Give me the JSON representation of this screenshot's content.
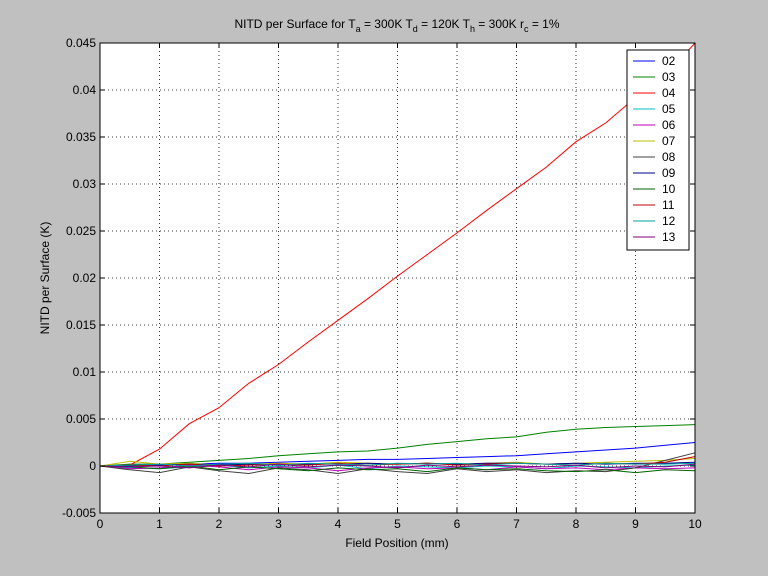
{
  "figure": {
    "background": "#c0c0c0",
    "axes_background": "#ffffff"
  },
  "chart_data": {
    "type": "line",
    "title_parts": [
      {
        "text": "NITD per Surface for T"
      },
      {
        "text": "a",
        "sub": true
      },
      {
        "text": " = 300K    T"
      },
      {
        "text": "d",
        "sub": true
      },
      {
        "text": " = 120K    T"
      },
      {
        "text": "h",
        "sub": true
      },
      {
        "text": " = 300K    r"
      },
      {
        "text": "c",
        "sub": true
      },
      {
        "text": " = 1%"
      }
    ],
    "xlabel": "Field Position (mm)",
    "ylabel": "NITD per Surface (K)",
    "xlim": [
      0,
      10
    ],
    "ylim": [
      -0.005,
      0.045
    ],
    "xticks": [
      0,
      1,
      2,
      3,
      4,
      5,
      6,
      7,
      8,
      9,
      10
    ],
    "xtick_labels": [
      "0",
      "1",
      "2",
      "3",
      "4",
      "5",
      "6",
      "7",
      "8",
      "9",
      "10"
    ],
    "yticks": [
      -0.005,
      0,
      0.005,
      0.01,
      0.015,
      0.02,
      0.025,
      0.03,
      0.035,
      0.04,
      0.045
    ],
    "ytick_labels": [
      "-0.005",
      "0",
      "0.005",
      "0.01",
      "0.015",
      "0.02",
      "0.025",
      "0.03",
      "0.035",
      "0.04",
      "0.045"
    ],
    "grid": true,
    "legend_position": "top-right",
    "x": [
      0,
      0.5,
      1,
      1.5,
      2,
      2.5,
      3,
      3.5,
      4,
      4.5,
      5,
      5.5,
      6,
      6.5,
      7,
      7.5,
      8,
      8.5,
      9,
      9.5,
      10
    ],
    "series": [
      {
        "name": "02",
        "color": "#0000ff",
        "values": [
          0,
          0.0001,
          0.0001,
          0.0002,
          0.0003,
          0.0003,
          0.0004,
          0.0005,
          0.0006,
          0.0007,
          0.0007,
          0.0008,
          0.0009,
          0.001,
          0.0011,
          0.0013,
          0.0015,
          0.0017,
          0.0019,
          0.0022,
          0.0025
        ]
      },
      {
        "name": "03",
        "color": "#008000",
        "values": [
          0,
          0.0002,
          0.0002,
          0.0004,
          0.0006,
          0.0008,
          0.0011,
          0.0013,
          0.0015,
          0.0016,
          0.0019,
          0.0023,
          0.0026,
          0.0029,
          0.0031,
          0.0036,
          0.0039,
          0.0041,
          0.0042,
          0.0043,
          0.0044
        ]
      },
      {
        "name": "04",
        "color": "#ff0000",
        "values": [
          0,
          0.0001,
          0.0018,
          0.0045,
          0.0062,
          0.0088,
          0.0108,
          0.0132,
          0.0155,
          0.0178,
          0.0202,
          0.0225,
          0.0248,
          0.0272,
          0.0295,
          0.0318,
          0.0345,
          0.0365,
          0.0392,
          0.0415,
          0.045
        ]
      },
      {
        "name": "05",
        "color": "#00bfbf",
        "values": [
          0,
          -0.0002,
          -0.0003,
          -0.0001,
          0.0001,
          -0.0002,
          0,
          -0.0002,
          0.0001,
          -0.0003,
          0,
          -0.0001,
          -0.0002,
          0,
          -0.0001,
          -0.0003,
          0,
          -0.0001,
          -0.0002,
          0,
          0.0001
        ]
      },
      {
        "name": "06",
        "color": "#bf00bf",
        "values": [
          0,
          -0.0003,
          -0.0002,
          0.0001,
          -0.0001,
          -0.0004,
          -0.0001,
          -0.0002,
          -0.0005,
          -0.0002,
          -0.0001,
          -0.0003,
          -0.0002,
          -0.0004,
          -0.0001,
          -0.0003,
          -0.0002,
          -0.0004,
          -0.0002,
          -0.0003,
          -0.0002
        ]
      },
      {
        "name": "07",
        "color": "#bfbf00",
        "values": [
          0,
          0.0005,
          0.0002,
          0.0003,
          0.0001,
          0.0002,
          0.0003,
          0.0002,
          0.0004,
          0.0003,
          0.0002,
          0.0003,
          0.0002,
          0.0003,
          0.0004,
          0.0002,
          0.0003,
          0.0004,
          0.0005,
          0.0006,
          0.0008
        ]
      },
      {
        "name": "08",
        "color": "#404040",
        "values": [
          0,
          -0.0004,
          -0.0007,
          -0.0001,
          -0.0005,
          -0.0008,
          -0.0002,
          -0.0004,
          -0.0008,
          -0.0003,
          -0.0006,
          -0.0008,
          -0.0003,
          -0.0006,
          -0.0004,
          -0.0007,
          -0.0005,
          -0.0006,
          -0.0002,
          0.0006,
          0.0014
        ]
      },
      {
        "name": "09",
        "color": "#00008b",
        "values": [
          0,
          0,
          0.0001,
          0.0002,
          0.0001,
          0.0002,
          0.0001,
          0.0002,
          0.0002,
          0.0003,
          0.0002,
          0.0003,
          0.0002,
          0.0003,
          0.0003,
          0.0002,
          0.0003,
          0.0002,
          0.0003,
          0.0003,
          0.0004
        ]
      },
      {
        "name": "10",
        "color": "#006400",
        "values": [
          0,
          -0.0001,
          -0.0003,
          0,
          -0.0004,
          -0.0001,
          -0.0003,
          -0.0005,
          -0.0002,
          -0.0004,
          -0.0003,
          -0.0006,
          -0.0002,
          -0.0004,
          -0.0003,
          -0.0005,
          -0.0006,
          -0.0004,
          -0.0007,
          -0.0004,
          -0.0005
        ]
      },
      {
        "name": "11",
        "color": "#c00000",
        "values": [
          0,
          0.0001,
          0,
          0.0002,
          0,
          0.0001,
          0.0002,
          0.0001,
          0.0003,
          0.0001,
          0.0002,
          0.0003,
          0.0001,
          0.0002,
          0.0003,
          0.0002,
          0.0001,
          0.0003,
          0.0002,
          0.0004,
          0.001
        ]
      },
      {
        "name": "12",
        "color": "#00a0a0",
        "values": [
          0,
          0.0001,
          0.0002,
          0,
          0.0002,
          0.0003,
          0.0001,
          0.0003,
          0.0002,
          0.0001,
          0.0003,
          0.0002,
          0.0003,
          0.0001,
          0.0003,
          0.0002,
          0.0001,
          0.0003,
          0.0002,
          0.0002,
          0.0003
        ]
      },
      {
        "name": "13",
        "color": "#800080",
        "values": [
          0,
          -0.0001,
          0,
          -0.0002,
          0.0001,
          -0.0001,
          0.0002,
          -0.0001,
          0.0001,
          0,
          -0.0002,
          0.0001,
          -0.0001,
          0.0001,
          0,
          -0.0001,
          0.0001,
          -0.0002,
          0,
          -0.0001,
          0.0002
        ]
      }
    ]
  }
}
